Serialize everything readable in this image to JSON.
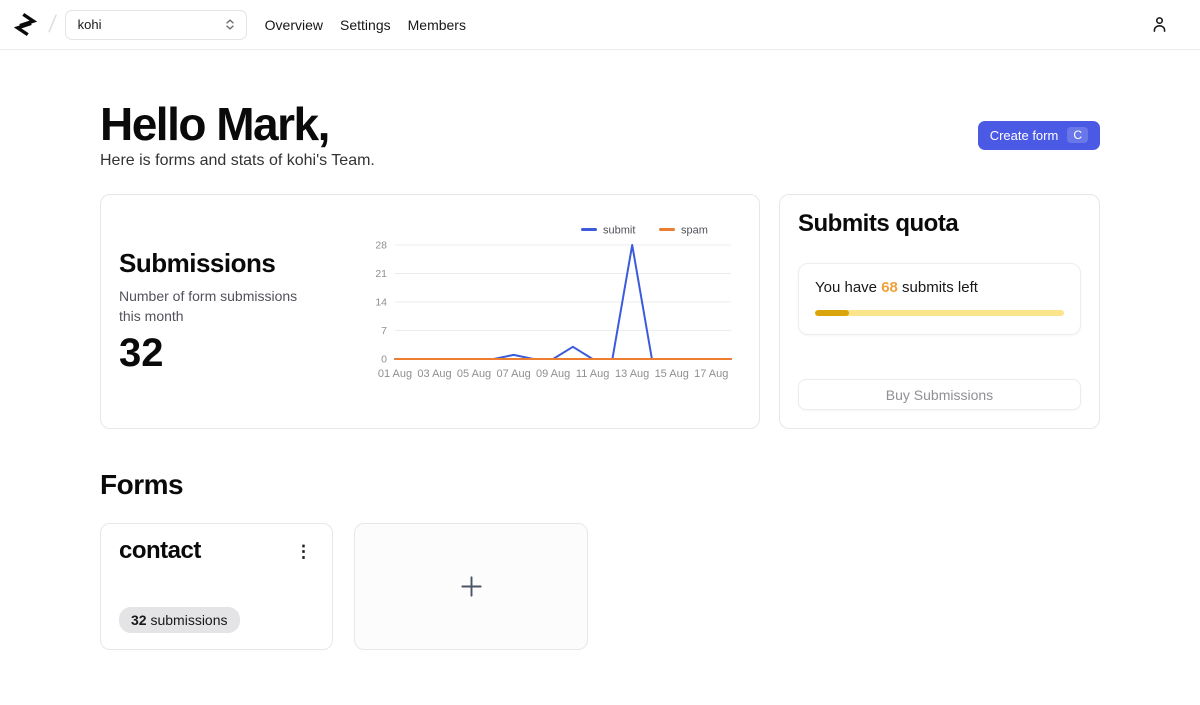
{
  "header": {
    "separator": "/",
    "team_select": {
      "value": "kohi"
    },
    "nav": [
      {
        "label": "Overview"
      },
      {
        "label": "Settings"
      },
      {
        "label": "Members"
      }
    ]
  },
  "hero": {
    "greeting": "Hello Mark,",
    "subtitle": "Here is forms and stats of kohi's Team.",
    "create_form": {
      "label": "Create form",
      "shortcut": "C",
      "background": "#4a5ae4"
    }
  },
  "submissions_card": {
    "title": "Submissions",
    "description": "Number of form submissions this month",
    "count": "32"
  },
  "chart_data": {
    "type": "line",
    "x": [
      "01 Aug",
      "02 Aug",
      "03 Aug",
      "04 Aug",
      "05 Aug",
      "06 Aug",
      "07 Aug",
      "08 Aug",
      "09 Aug",
      "10 Aug",
      "11 Aug",
      "12 Aug",
      "13 Aug",
      "14 Aug",
      "15 Aug",
      "16 Aug",
      "17 Aug",
      "18 Aug"
    ],
    "x_tick_labels": [
      "01 Aug",
      "03 Aug",
      "05 Aug",
      "07 Aug",
      "09 Aug",
      "11 Aug",
      "13 Aug",
      "15 Aug",
      "17 Aug"
    ],
    "series": [
      {
        "name": "submit",
        "color": "#3b5bdb",
        "values": [
          0,
          0,
          0,
          0,
          0,
          0,
          1,
          0,
          0,
          3,
          0,
          0,
          28,
          0,
          0,
          0,
          0,
          0
        ]
      },
      {
        "name": "spam",
        "color": "#ed7d31",
        "values": [
          0,
          0,
          0,
          0,
          0,
          0,
          0,
          0,
          0,
          0,
          0,
          0,
          0,
          0,
          0,
          0,
          0,
          0
        ]
      }
    ],
    "y_ticks": [
      0,
      7,
      14,
      21,
      28
    ],
    "ylim": [
      0,
      28
    ],
    "grid": true,
    "legend_position": "top-right",
    "axis_color": "#8f8f8f",
    "grid_color": "#ececec"
  },
  "quota_card": {
    "title": "Submits quota",
    "message_prefix": "You have ",
    "remaining": "68",
    "remaining_color": "#efa23b",
    "message_suffix": " submits left",
    "progress_percent": 13.5,
    "progress_fill_color": "#d9a50a",
    "progress_track_color": "#fae58b",
    "buy_button_label": "Buy Submissions"
  },
  "forms_section": {
    "title": "Forms",
    "forms": [
      {
        "name": "contact",
        "badge_count": "32",
        "badge_label": " submissions"
      }
    ]
  },
  "icons": {
    "logo": "brand-mark",
    "team_select_chevrons": "chevron-up-down",
    "user": "person",
    "kebab": "⋮",
    "new_form_plus": "plus"
  }
}
